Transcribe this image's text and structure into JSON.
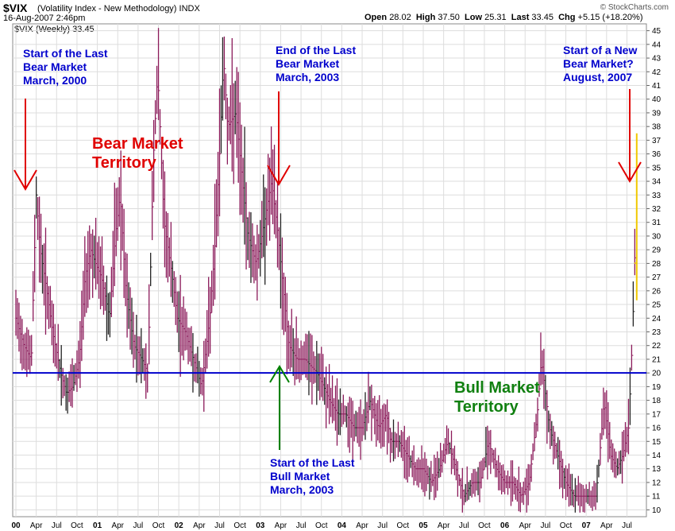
{
  "header": {
    "symbol": "$VIX",
    "description": "(Volatility Index - New Methodology)",
    "exchange": "INDX",
    "date": "16-Aug-2007 2:46pm",
    "brand": "© StockCharts.com",
    "open_label": "Open",
    "open": "28.02",
    "high_label": "High",
    "high": "37.50",
    "low_label": "Low",
    "low": "25.31",
    "last_label": "Last",
    "last": "33.45",
    "chg_label": "Chg",
    "chg": "+5.15 (+18.20%)",
    "legend": "$VIX (Weekly) 33.45"
  },
  "colors": {
    "bars": "#8b1a5a",
    "bars_black": "#222222",
    "latest_bar": "#f0c800",
    "line": "#0000cc",
    "arrow_red": "#e00000",
    "arrow_green": "#008000",
    "annot_blue": "#0000cc",
    "annot_red": "#e00000",
    "annot_green": "#108010",
    "grid": "#dddddd"
  },
  "annotations": {
    "a1": [
      "Start of the Last",
      "Bear Market",
      "March, 2000"
    ],
    "a2": [
      "End of the Last",
      "Bear Market",
      "March, 2003"
    ],
    "a3": [
      "Start of a New",
      "Bear Market?",
      "August, 2007"
    ],
    "a4": [
      "Start of the Last",
      "Bull Market",
      "March, 2003"
    ],
    "bear": [
      "Bear Market",
      "Territory"
    ],
    "bull": [
      "Bull Market",
      "Territory"
    ]
  },
  "chart_data": {
    "type": "bar",
    "style": "ohlc-weekly",
    "title": "$VIX (Volatility Index - New Methodology)",
    "ylim": [
      9.5,
      45.5
    ],
    "yticks": [
      10,
      11,
      12,
      13,
      14,
      15,
      16,
      17,
      18,
      19,
      20,
      21,
      22,
      23,
      24,
      25,
      26,
      27,
      28,
      29,
      30,
      31,
      32,
      33,
      34,
      35,
      36,
      37,
      38,
      39,
      40,
      41,
      42,
      43,
      44,
      45
    ],
    "y_axis_side": "right",
    "grid": true,
    "x_range": [
      2000.0,
      2007.7
    ],
    "xticks": [
      {
        "t": 2000.0,
        "label": "00"
      },
      {
        "t": 2000.25,
        "label": "Apr"
      },
      {
        "t": 2000.5,
        "label": "Jul"
      },
      {
        "t": 2000.75,
        "label": "Oct"
      },
      {
        "t": 2001.0,
        "label": "01"
      },
      {
        "t": 2001.25,
        "label": "Apr"
      },
      {
        "t": 2001.5,
        "label": "Jul"
      },
      {
        "t": 2001.75,
        "label": "Oct"
      },
      {
        "t": 2002.0,
        "label": "02"
      },
      {
        "t": 2002.25,
        "label": "Apr"
      },
      {
        "t": 2002.5,
        "label": "Jul"
      },
      {
        "t": 2002.75,
        "label": "Oct"
      },
      {
        "t": 2003.0,
        "label": "03"
      },
      {
        "t": 2003.25,
        "label": "Apr"
      },
      {
        "t": 2003.5,
        "label": "Jul"
      },
      {
        "t": 2003.75,
        "label": "Oct"
      },
      {
        "t": 2004.0,
        "label": "04"
      },
      {
        "t": 2004.25,
        "label": "Apr"
      },
      {
        "t": 2004.5,
        "label": "Jul"
      },
      {
        "t": 2004.75,
        "label": "Oct"
      },
      {
        "t": 2005.0,
        "label": "05"
      },
      {
        "t": 2005.25,
        "label": "Apr"
      },
      {
        "t": 2005.5,
        "label": "Jul"
      },
      {
        "t": 2005.75,
        "label": "Oct"
      },
      {
        "t": 2006.0,
        "label": "06"
      },
      {
        "t": 2006.25,
        "label": "Apr"
      },
      {
        "t": 2006.5,
        "label": "Jul"
      },
      {
        "t": 2006.75,
        "label": "Oct"
      },
      {
        "t": 2007.0,
        "label": "07"
      },
      {
        "t": 2007.25,
        "label": "Apr"
      },
      {
        "t": 2007.5,
        "label": "Jul"
      }
    ],
    "reference_line": 20,
    "weekly_closes": [
      [
        2000.0,
        24
      ],
      [
        2000.1,
        22
      ],
      [
        2000.19,
        21
      ],
      [
        2000.25,
        33
      ],
      [
        2000.3,
        29
      ],
      [
        2000.38,
        26
      ],
      [
        2000.45,
        23
      ],
      [
        2000.55,
        20
      ],
      [
        2000.62,
        18.5
      ],
      [
        2000.7,
        19
      ],
      [
        2000.78,
        21
      ],
      [
        2000.85,
        27
      ],
      [
        2000.92,
        29
      ],
      [
        2000.98,
        28
      ],
      [
        2001.05,
        27
      ],
      [
        2001.15,
        24
      ],
      [
        2001.22,
        30
      ],
      [
        2001.28,
        33
      ],
      [
        2001.35,
        26
      ],
      [
        2001.45,
        22
      ],
      [
        2001.55,
        21
      ],
      [
        2001.62,
        20
      ],
      [
        2001.69,
        36
      ],
      [
        2001.74,
        42
      ],
      [
        2001.82,
        31
      ],
      [
        2001.92,
        27
      ],
      [
        2001.98,
        24
      ],
      [
        2002.08,
        23
      ],
      [
        2002.18,
        21
      ],
      [
        2002.28,
        19
      ],
      [
        2002.38,
        24
      ],
      [
        2002.44,
        29
      ],
      [
        2002.5,
        36
      ],
      [
        2002.55,
        43
      ],
      [
        2002.6,
        38
      ],
      [
        2002.7,
        39
      ],
      [
        2002.78,
        34
      ],
      [
        2002.85,
        30
      ],
      [
        2002.95,
        28
      ],
      [
        2003.02,
        30
      ],
      [
        2003.08,
        32
      ],
      [
        2003.14,
        34
      ],
      [
        2003.22,
        30
      ],
      [
        2003.3,
        25
      ],
      [
        2003.35,
        22
      ],
      [
        2003.45,
        21
      ],
      [
        2003.55,
        21
      ],
      [
        2003.62,
        20.5
      ],
      [
        2003.7,
        20
      ],
      [
        2003.78,
        19
      ],
      [
        2003.85,
        18
      ],
      [
        2003.95,
        17
      ],
      [
        2004.05,
        17
      ],
      [
        2004.15,
        16
      ],
      [
        2004.25,
        16
      ],
      [
        2004.35,
        18
      ],
      [
        2004.45,
        16
      ],
      [
        2004.55,
        17
      ],
      [
        2004.6,
        15
      ],
      [
        2004.7,
        15
      ],
      [
        2004.8,
        14
      ],
      [
        2004.9,
        13
      ],
      [
        2005.0,
        13
      ],
      [
        2005.1,
        12
      ],
      [
        2005.2,
        13
      ],
      [
        2005.3,
        15
      ],
      [
        2005.4,
        13
      ],
      [
        2005.5,
        11
      ],
      [
        2005.6,
        12
      ],
      [
        2005.7,
        12
      ],
      [
        2005.8,
        15
      ],
      [
        2005.9,
        13
      ],
      [
        2006.0,
        12
      ],
      [
        2006.1,
        12
      ],
      [
        2006.2,
        11
      ],
      [
        2006.3,
        12
      ],
      [
        2006.4,
        17
      ],
      [
        2006.45,
        21
      ],
      [
        2006.55,
        16
      ],
      [
        2006.65,
        14
      ],
      [
        2006.75,
        12
      ],
      [
        2006.85,
        11
      ],
      [
        2006.95,
        11
      ],
      [
        2007.05,
        11
      ],
      [
        2007.12,
        11
      ],
      [
        2007.18,
        15
      ],
      [
        2007.22,
        18
      ],
      [
        2007.3,
        14
      ],
      [
        2007.38,
        13
      ],
      [
        2007.45,
        14
      ],
      [
        2007.52,
        16
      ],
      [
        2007.55,
        20
      ],
      [
        2007.58,
        25
      ],
      [
        2007.62,
        33.45
      ]
    ]
  }
}
